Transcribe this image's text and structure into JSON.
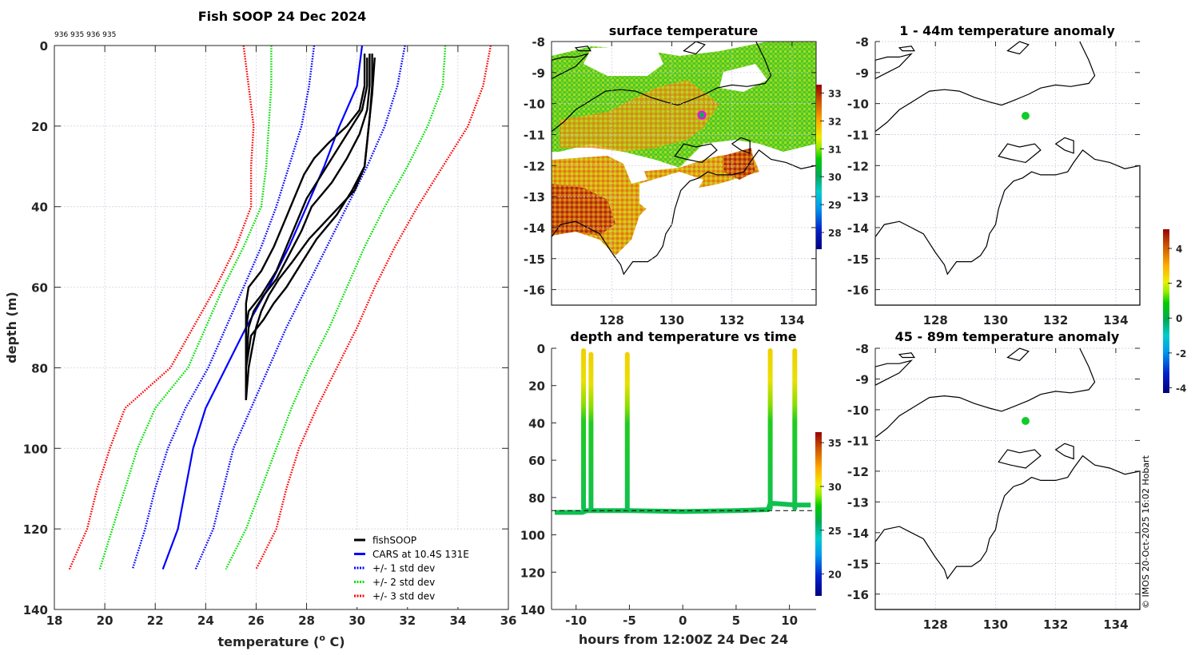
{
  "figure": {
    "credit": "© IMOS 20-Oct-2025 16:02 Hobart"
  },
  "chart_data": [
    {
      "id": "profile",
      "type": "line",
      "title": "Fish SOOP 24 Dec 2024",
      "subtitle": "936 935 936 935",
      "xlabel": "temperature (o C)",
      "xlabel_main": "temperature (",
      "xlabel_sup": "o",
      "xlabel_end": " C)",
      "ylabel": "depth (m)",
      "xlim": [
        18,
        36
      ],
      "ylim": [
        0,
        140
      ],
      "y_reversed": true,
      "grid": true,
      "xticks": [
        18,
        20,
        22,
        24,
        26,
        28,
        30,
        32,
        34,
        36
      ],
      "yticks": [
        0,
        20,
        40,
        60,
        80,
        100,
        120,
        140
      ],
      "legend_position": "bottom-right",
      "legend": [
        {
          "label": "fishSOOP",
          "color": "#000000",
          "style": "solid"
        },
        {
          "label": "CARS at 10.4S 131E",
          "color": "#0000ff",
          "style": "solid"
        },
        {
          "label": "+/- 1 std dev",
          "color": "#0000ff",
          "style": "dotted"
        },
        {
          "label": "+/- 2 std dev",
          "color": "#00dd00",
          "style": "dotted"
        },
        {
          "label": "+/- 3 std dev",
          "color": "#ff0000",
          "style": "dotted"
        }
      ],
      "series": [
        {
          "name": "+/- 3 std dev (low)",
          "color": "#ff0000",
          "style": "dotted",
          "depth": [
            0,
            10,
            20,
            30,
            40,
            50,
            60,
            70,
            80,
            90,
            100,
            110,
            120,
            130
          ],
          "temp": [
            25.5,
            25.7,
            25.9,
            25.8,
            25.8,
            25.2,
            24.4,
            23.5,
            22.6,
            20.8,
            20.2,
            19.7,
            19.3,
            18.6
          ]
        },
        {
          "name": "+/- 2 std dev (low)",
          "color": "#00dd00",
          "style": "dotted",
          "depth": [
            0,
            10,
            20,
            30,
            40,
            50,
            60,
            70,
            80,
            90,
            100,
            110,
            120,
            130
          ],
          "temp": [
            26.6,
            26.6,
            26.5,
            26.4,
            26.2,
            25.5,
            24.7,
            24.0,
            23.3,
            22.0,
            21.3,
            20.8,
            20.3,
            19.8
          ]
        },
        {
          "name": "+/- 1 std dev (low)",
          "color": "#0000ff",
          "style": "dotted",
          "depth": [
            0,
            10,
            20,
            30,
            40,
            50,
            60,
            70,
            80,
            90,
            100,
            110,
            120,
            130
          ],
          "temp": [
            28.3,
            28.1,
            27.8,
            27.3,
            26.8,
            26.2,
            25.5,
            24.8,
            24.1,
            23.2,
            22.5,
            22.0,
            21.6,
            21.1
          ]
        },
        {
          "name": "CARS at 10.4S 131E",
          "color": "#0000ff",
          "style": "solid",
          "depth": [
            0,
            10,
            20,
            30,
            40,
            50,
            60,
            70,
            80,
            90,
            100,
            110,
            120,
            130
          ],
          "temp": [
            30.2,
            30.0,
            29.3,
            28.7,
            28.0,
            27.3,
            26.5,
            25.6,
            24.8,
            24.0,
            23.5,
            23.2,
            22.9,
            22.3
          ]
        },
        {
          "name": "+/- 1 std dev (high)",
          "color": "#0000ff",
          "style": "dotted",
          "depth": [
            0,
            10,
            20,
            30,
            40,
            50,
            60,
            70,
            80,
            90,
            100,
            110,
            120,
            130
          ],
          "temp": [
            31.9,
            31.6,
            31.1,
            30.4,
            29.6,
            28.8,
            28.0,
            27.2,
            26.5,
            25.8,
            25.1,
            24.7,
            24.3,
            23.6
          ]
        },
        {
          "name": "+/- 2 std dev (high)",
          "color": "#00dd00",
          "style": "dotted",
          "depth": [
            0,
            10,
            20,
            30,
            40,
            50,
            60,
            70,
            80,
            90,
            100,
            110,
            120,
            130
          ],
          "temp": [
            33.5,
            33.4,
            32.8,
            32.0,
            31.1,
            30.3,
            29.6,
            28.9,
            28.1,
            27.4,
            26.8,
            26.2,
            25.6,
            24.8
          ]
        },
        {
          "name": "+/- 3 std dev (high)",
          "color": "#ff0000",
          "style": "dotted",
          "depth": [
            0,
            10,
            20,
            30,
            40,
            50,
            60,
            70,
            80,
            90,
            100,
            110,
            120,
            130
          ],
          "temp": [
            35.3,
            35.0,
            34.4,
            33.4,
            32.4,
            31.5,
            30.7,
            30.0,
            29.2,
            28.4,
            27.7,
            27.2,
            26.8,
            26.0
          ]
        },
        {
          "name": "fishSOOP profile 1",
          "color": "#000000",
          "style": "solid",
          "depth": [
            2,
            10,
            16,
            20,
            24,
            28,
            32,
            38,
            44,
            50,
            56,
            60,
            64,
            70,
            80,
            88
          ],
          "temp": [
            30.3,
            30.3,
            30.1,
            29.6,
            28.9,
            28.3,
            27.9,
            27.5,
            27.1,
            26.7,
            26.2,
            25.7,
            25.6,
            25.6,
            25.6,
            25.6
          ]
        },
        {
          "name": "fishSOOP profile 2",
          "color": "#000000",
          "style": "solid",
          "depth": [
            3,
            10,
            16,
            20,
            26,
            32,
            38,
            44,
            50,
            56,
            62,
            66,
            70,
            80,
            88
          ],
          "temp": [
            30.4,
            30.4,
            30.2,
            29.8,
            29.2,
            28.6,
            28.0,
            27.6,
            27.2,
            26.8,
            26.2,
            25.7,
            25.6,
            25.6,
            25.6
          ]
        },
        {
          "name": "fishSOOP profile 3",
          "color": "#000000",
          "style": "solid",
          "depth": [
            2,
            10,
            16,
            22,
            28,
            34,
            40,
            46,
            52,
            58,
            62,
            66,
            70,
            80,
            88
          ],
          "temp": [
            30.5,
            30.5,
            30.4,
            30.1,
            29.6,
            29.0,
            28.2,
            27.8,
            27.3,
            26.8,
            26.3,
            25.9,
            25.7,
            25.6,
            25.6
          ]
        },
        {
          "name": "fishSOOP profile 4",
          "color": "#000000",
          "style": "solid",
          "depth": [
            2,
            10,
            18,
            24,
            30,
            36,
            42,
            48,
            54,
            60,
            64,
            68,
            72,
            80,
            88
          ],
          "temp": [
            30.6,
            30.6,
            30.5,
            30.4,
            30.3,
            29.8,
            29.2,
            28.4,
            27.8,
            27.2,
            26.7,
            26.3,
            25.8,
            25.6,
            25.6
          ]
        },
        {
          "name": "fishSOOP profile 5",
          "color": "#000000",
          "style": "solid",
          "depth": [
            3,
            12,
            18,
            24,
            30,
            36,
            42,
            48,
            54,
            58,
            62,
            66,
            70,
            80,
            88
          ],
          "temp": [
            30.7,
            30.6,
            30.5,
            30.4,
            30.3,
            29.9,
            29.0,
            28.1,
            27.4,
            26.9,
            26.5,
            26.2,
            26.0,
            25.7,
            25.6
          ]
        }
      ]
    },
    {
      "id": "sst-map",
      "type": "heatmap",
      "title": "surface temperature",
      "xlim": [
        126,
        134.8
      ],
      "ylim": [
        -16.5,
        -8
      ],
      "xticks": [
        128,
        130,
        132,
        134
      ],
      "yticks": [
        -8,
        -9,
        -10,
        -11,
        -12,
        -13,
        -14,
        -15,
        -16
      ],
      "colorbar": {
        "min": 27.4,
        "max": 33.3,
        "ticks": [
          28,
          29,
          30,
          31,
          32,
          33
        ]
      },
      "marker": {
        "lon": 131,
        "lat": -10.4,
        "edge_color": "#ff00ff",
        "face_color": "#00b050"
      }
    },
    {
      "id": "time-depth",
      "type": "scatter",
      "title": "depth and temperature vs time",
      "xlabel": "hours from 12:00Z 24 Dec 24",
      "ylabel": "",
      "xlim": [
        -12.3,
        12.5
      ],
      "ylim": [
        0,
        140
      ],
      "y_reversed": true,
      "xticks": [
        -10,
        -5,
        0,
        5,
        10
      ],
      "yticks": [
        0,
        20,
        40,
        60,
        80,
        100,
        120,
        140
      ],
      "colorbar": {
        "min": 17.5,
        "max": 36.2,
        "ticks": [
          20,
          25,
          30,
          35
        ]
      },
      "bottom_depth_m": 87,
      "profiles_hours": [
        -9.3,
        -8.6,
        -5.2,
        8.2,
        10.5
      ],
      "profiles_min_depth_m": [
        0,
        2,
        2,
        0,
        0
      ],
      "bottom_track": {
        "hours": [
          -12.0,
          -9.4,
          -9.0,
          -5.0,
          0,
          5,
          8.0,
          8.2,
          10.6,
          12.0
        ],
        "depth": [
          88,
          88,
          87,
          87,
          87.5,
          87,
          86.5,
          83,
          84,
          84
        ]
      }
    },
    {
      "id": "anomaly-1-44",
      "type": "heatmap",
      "title": "1 - 44m temperature anomaly",
      "xlim": [
        126,
        134.8
      ],
      "ylim": [
        -16.5,
        -8
      ],
      "xticks": [
        128,
        130,
        132,
        134
      ],
      "yticks": [
        -8,
        -9,
        -10,
        -11,
        -12,
        -13,
        -14,
        -15,
        -16
      ],
      "marker": {
        "lon": 131,
        "lat": -10.4,
        "anomaly": 0.0
      }
    },
    {
      "id": "anomaly-45-89",
      "type": "heatmap",
      "title": "45 - 89m temperature anomaly",
      "xlim": [
        126,
        134.8
      ],
      "ylim": [
        -16.5,
        -8
      ],
      "xticks": [
        128,
        130,
        132,
        134
      ],
      "yticks": [
        -8,
        -9,
        -10,
        -11,
        -12,
        -13,
        -14,
        -15,
        -16
      ],
      "marker": {
        "lon": 131,
        "lat": -10.4,
        "anomaly": 0.0
      }
    },
    {
      "id": "anomaly-colorbar",
      "type": "heatmap",
      "colorbar": {
        "min": -4.3,
        "max": 5.1,
        "ticks": [
          -4,
          -2,
          0,
          2,
          4
        ]
      }
    }
  ]
}
